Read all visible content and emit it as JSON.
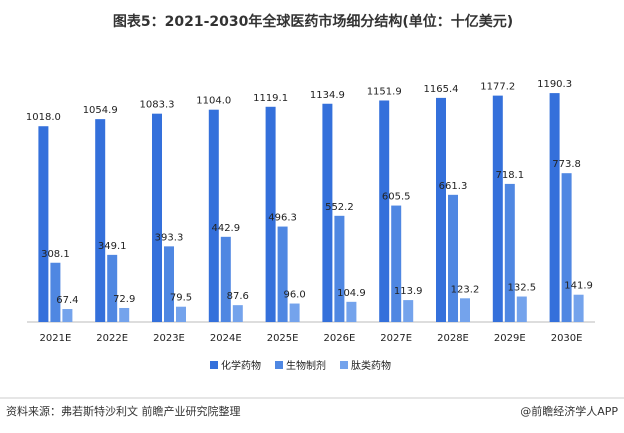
{
  "chart_data": {
    "type": "bar",
    "title": "图表5：2021-2030年全球医药市场细分结构(单位：十亿美元)",
    "categories": [
      "2021E",
      "2022E",
      "2023E",
      "2024E",
      "2025E",
      "2026E",
      "2027E",
      "2028E",
      "2029E",
      "2030E"
    ],
    "series": [
      {
        "name": "化学药物",
        "color": "#3470db",
        "values": [
          1018.0,
          1054.9,
          1083.3,
          1104.0,
          1119.1,
          1134.9,
          1151.9,
          1165.4,
          1177.2,
          1190.3
        ],
        "value_labels": [
          "1018.0",
          "1054.9",
          "1083.3",
          "1104.0",
          "1119.1",
          "1134.9",
          "1151.9",
          "1165.4",
          "1177.2",
          "1190.3"
        ]
      },
      {
        "name": "生物制剂",
        "color": "#4f87e2",
        "values": [
          308.1,
          349.1,
          393.3,
          442.9,
          496.3,
          552.2,
          605.5,
          661.3,
          718.1,
          773.8
        ],
        "value_labels": [
          "308.1",
          "349.1",
          "393.3",
          "442.9",
          "496.3",
          "552.2",
          "605.5",
          "661.3",
          "718.1",
          "773.8"
        ]
      },
      {
        "name": "肽类药物",
        "color": "#74a3ec",
        "values": [
          67.4,
          72.9,
          79.5,
          87.6,
          96.0,
          104.9,
          113.9,
          123.2,
          132.5,
          141.9
        ],
        "value_labels": [
          "67.4",
          "72.9",
          "79.5",
          "87.6",
          "96.0",
          "104.9",
          "113.9",
          "123.2",
          "132.5",
          "141.9"
        ]
      }
    ],
    "ylim": [
      0,
      1300
    ],
    "source": "资料来源：弗若斯特沙利文 前瞻产业研究院整理",
    "footer": "@前瞻经济学人APP"
  }
}
